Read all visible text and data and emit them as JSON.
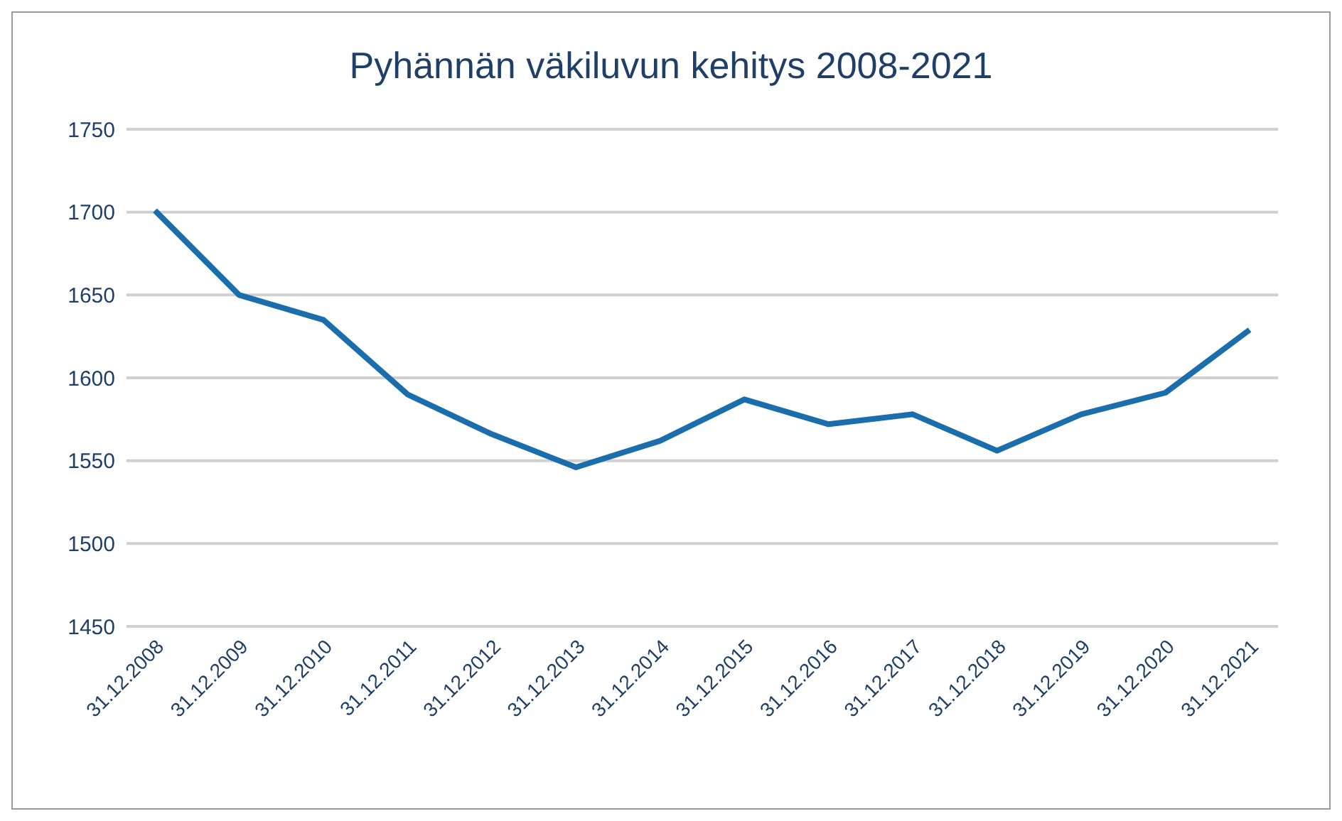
{
  "chart_data": {
    "type": "line",
    "title": "Pyhännän väkiluvun kehitys 2008-2021",
    "categories": [
      "31.12.2008",
      "31.12.2009",
      "31.12.2010",
      "31.12.2011",
      "31.12.2012",
      "31.12.2013",
      "31.12.2014",
      "31.12.2015",
      "31.12.2016",
      "31.12.2017",
      "31.12.2018",
      "31.12.2019",
      "31.12.2020",
      "31.12.2021"
    ],
    "series": [
      {
        "color": "#1a6eac",
        "values": [
          1701,
          1650,
          1635,
          1590,
          1566,
          1546,
          1562,
          1587,
          1572,
          1578,
          1556,
          1578,
          1591,
          1629
        ]
      }
    ],
    "ylim": [
      1450,
      1750
    ],
    "yticks": [
      1450,
      1500,
      1550,
      1600,
      1650,
      1700,
      1750
    ],
    "grid": "y",
    "legend": false,
    "marker": "none",
    "line_style": "solid"
  }
}
